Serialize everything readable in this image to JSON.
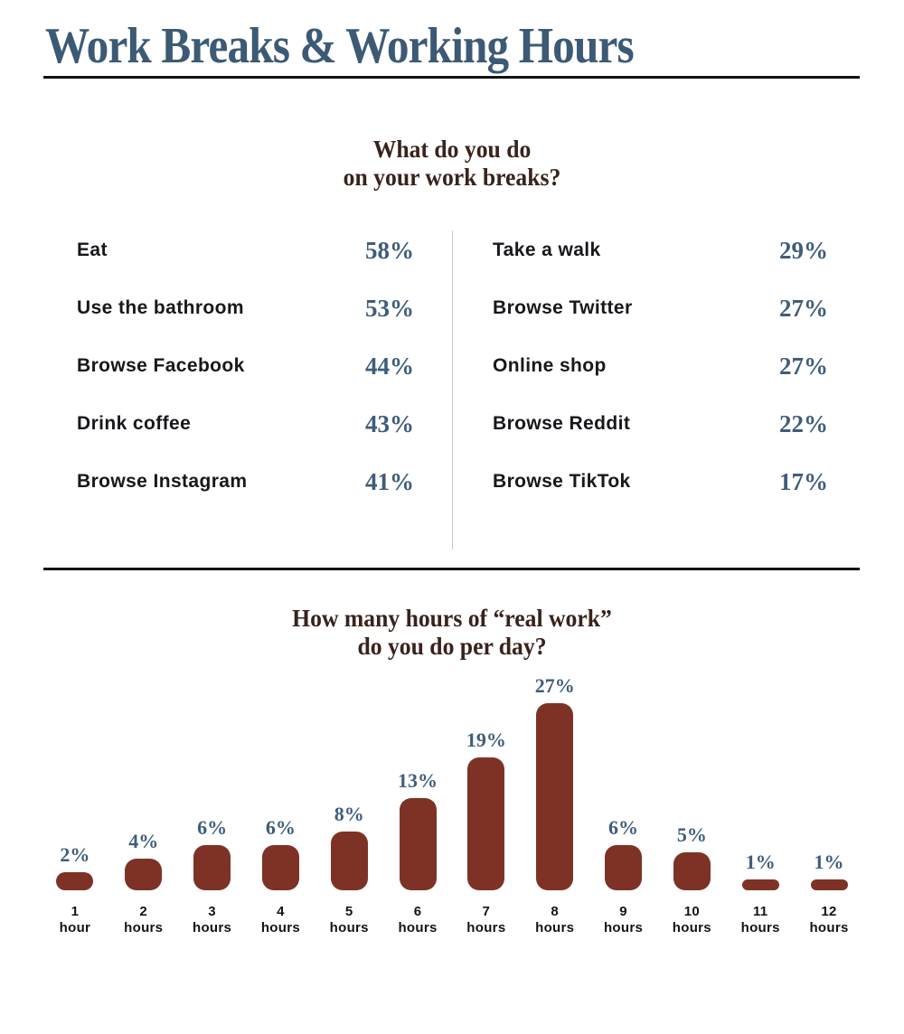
{
  "page_title": "Work Breaks & Working Hours",
  "colors": {
    "title_blue": "#3c5a75",
    "accent_blue": "#3f5d7b",
    "bar_brown": "#7e3226",
    "heading_brown": "#38231d",
    "text_dark": "#17181c",
    "divider_gray": "#c9c9c9",
    "rule_black": "#121212"
  },
  "breaks_section": {
    "title": "What do you do on your work breaks?",
    "title_lines": [
      "What do you do",
      "on your work breaks?"
    ],
    "columns": [
      {
        "items": [
          {
            "label": "Eat",
            "value": "58%"
          },
          {
            "label": "Use the bathroom",
            "value": "53%"
          },
          {
            "label": "Browse Facebook",
            "value": "44%"
          },
          {
            "label": "Drink coffee",
            "value": "43%"
          },
          {
            "label": "Browse Instagram",
            "value": "41%"
          }
        ]
      },
      {
        "items": [
          {
            "label": "Take a walk",
            "value": "29%"
          },
          {
            "label": "Browse Twitter",
            "value": "27%"
          },
          {
            "label": "Online shop",
            "value": "27%"
          },
          {
            "label": "Browse Reddit",
            "value": "22%"
          },
          {
            "label": "Browse TikTok",
            "value": "17%"
          }
        ]
      }
    ]
  },
  "chart_data": {
    "type": "bar",
    "title": "How many hours of “real work” do you do per day?",
    "title_lines": [
      "How many hours of “real work”",
      "do you do per day?"
    ],
    "categories": [
      "1 hour",
      "2 hours",
      "3 hours",
      "4 hours",
      "5 hours",
      "6 hours",
      "7 hours",
      "8 hours",
      "9 hours",
      "10 hours",
      "11 hours",
      "12 hours"
    ],
    "category_lines": [
      [
        "1",
        "hour"
      ],
      [
        "2",
        "hours"
      ],
      [
        "3",
        "hours"
      ],
      [
        "4",
        "hours"
      ],
      [
        "5",
        "hours"
      ],
      [
        "6",
        "hours"
      ],
      [
        "7",
        "hours"
      ],
      [
        "8",
        "hours"
      ],
      [
        "9",
        "hours"
      ],
      [
        "10",
        "hours"
      ],
      [
        "11",
        "hours"
      ],
      [
        "12",
        "hours"
      ]
    ],
    "values": [
      2,
      4,
      6,
      6,
      8,
      13,
      19,
      27,
      6,
      5,
      1,
      1
    ],
    "value_labels": [
      "2%",
      "4%",
      "6%",
      "6%",
      "8%",
      "13%",
      "19%",
      "27%",
      "6%",
      "5%",
      "1%",
      "1%"
    ],
    "xlabel": "",
    "ylabel": "",
    "ylim": [
      0,
      30
    ],
    "grid": false,
    "legend": "none",
    "bar_color": "#7e3226",
    "value_label_color": "#3f5d7b"
  }
}
